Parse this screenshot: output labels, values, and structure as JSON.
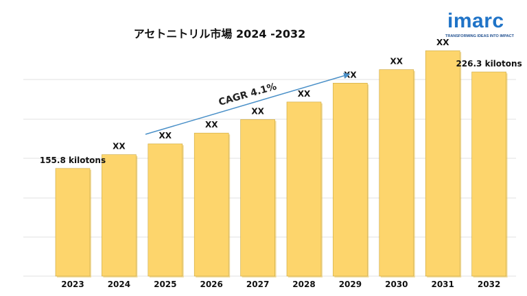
{
  "chart_data": {
    "type": "bar",
    "title": "アセトニトリル市場 2024 -2032",
    "categories": [
      "2023",
      "2024",
      "2025",
      "2026",
      "2027",
      "2028",
      "2029",
      "2030",
      "2031",
      "2032"
    ],
    "values": [
      155.8,
      166,
      174,
      182,
      192,
      205,
      219,
      229,
      243,
      226.3
    ],
    "value_labels": [
      "155.8 kilotons",
      "XX",
      "XX",
      "XX",
      "XX",
      "XX",
      "XX",
      "XX",
      "XX",
      "226.3 kilotons"
    ],
    "annotation": "CAGR  4.1%",
    "xlabel": "",
    "ylabel": "",
    "grid": true,
    "legend": "none",
    "bar_color": "#fdd56c",
    "bar_edge_color": "#c9a53c",
    "arrow_color": "#4a90c8"
  },
  "logo": {
    "word": "imarc",
    "tagline": "TRANSFORMING IDEAS INTO IMPACT",
    "color": "#1f73c7"
  }
}
